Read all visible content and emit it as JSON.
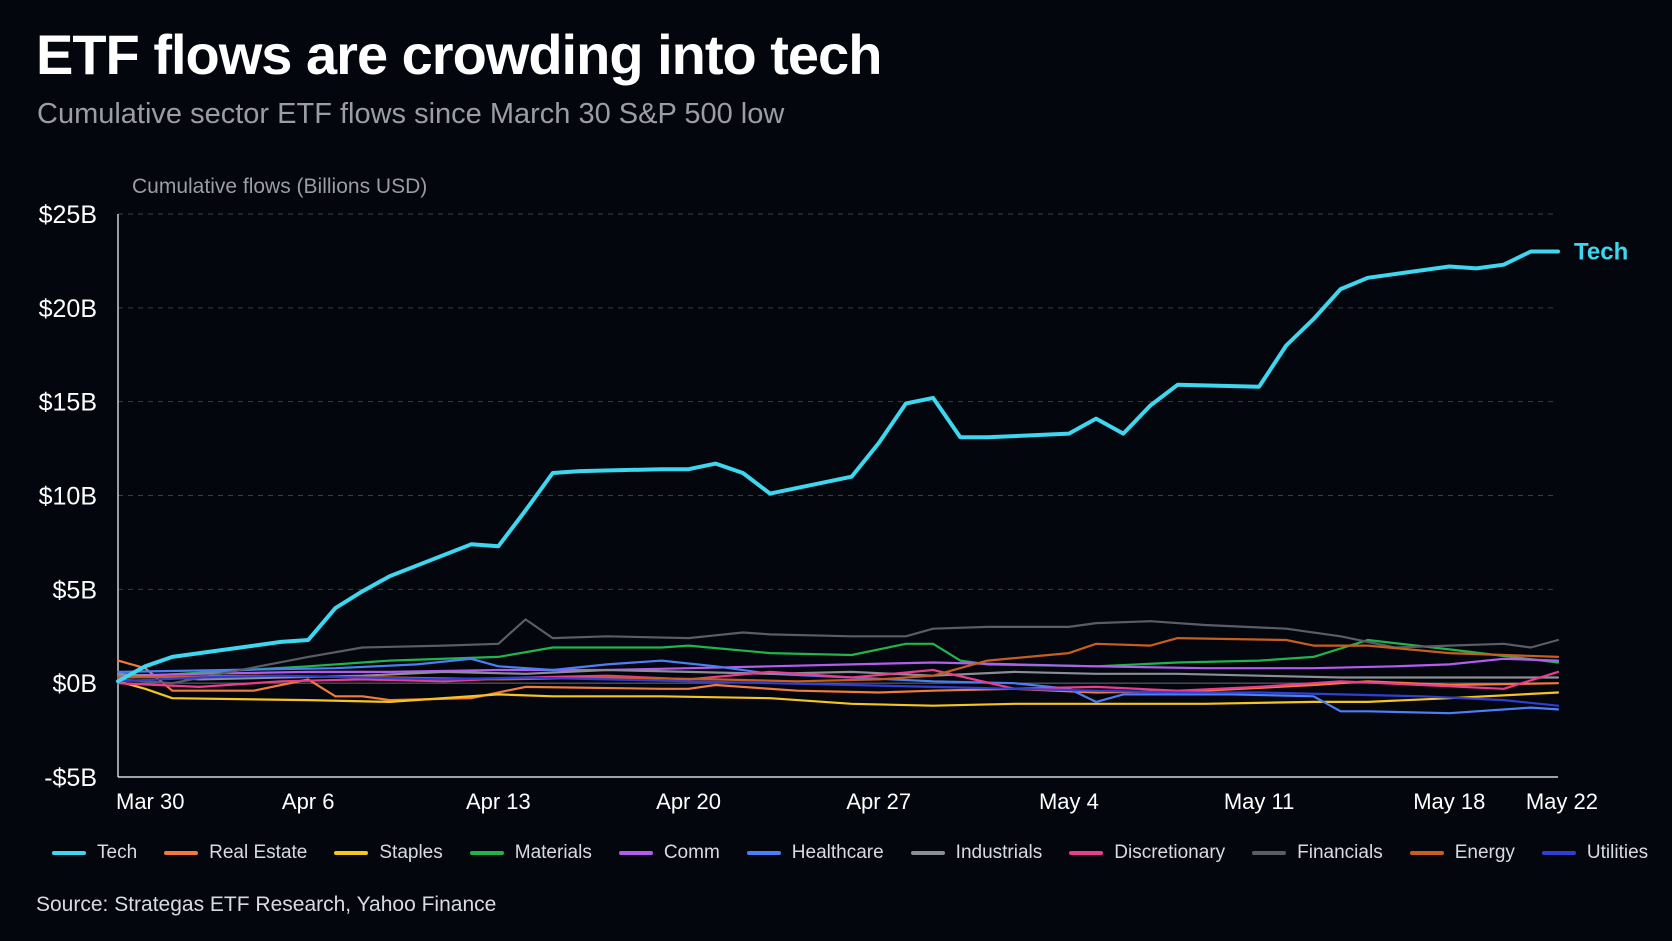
{
  "title": "ETF flows are crowding into tech",
  "subtitle": "Cumulative sector ETF flows since March 30 S&P 500 low",
  "source": "Source: Strategas ETF Research, Yahoo Finance",
  "chart_data": {
    "type": "line",
    "ylabel": "Cumulative flows (Billions USD)",
    "xlabel": "",
    "ylim": [
      -5,
      25
    ],
    "yticks": [
      25,
      20,
      15,
      10,
      5,
      0,
      -5
    ],
    "ytick_labels": [
      "$25B",
      "$20B",
      "$15B",
      "$10B",
      "$5B",
      "$0B",
      "-$5B"
    ],
    "xlim": [
      0,
      53
    ],
    "xticks": [
      0,
      7,
      14,
      21,
      28,
      35,
      42,
      49,
      53
    ],
    "xtick_labels": [
      "Mar 30",
      "Apr 6",
      "Apr 13",
      "Apr 20",
      "Apr 27",
      "May 4",
      "May 11",
      "May 18",
      "May 22"
    ],
    "grid": "horizontal dashed",
    "legend": "bottom",
    "annotations": [
      {
        "text": "Tech",
        "series": "Tech",
        "position": "line end"
      }
    ],
    "series": [
      {
        "name": "Tech",
        "color": "#3dd8f0",
        "x": [
          0,
          1,
          2,
          3,
          6,
          7,
          8,
          9,
          10,
          13,
          14,
          15,
          16,
          17,
          20,
          21,
          22,
          23,
          24,
          27,
          28,
          29,
          30,
          31,
          32,
          35,
          36,
          37,
          38,
          39,
          42,
          43,
          44,
          45,
          46,
          49,
          50,
          51,
          52,
          53
        ],
        "values": [
          0.1,
          0.9,
          1.4,
          1.6,
          2.2,
          2.3,
          4.0,
          4.9,
          5.7,
          7.4,
          7.3,
          9.2,
          11.2,
          11.3,
          11.4,
          11.4,
          11.7,
          11.2,
          10.1,
          11.0,
          12.8,
          14.9,
          15.2,
          13.1,
          13.1,
          13.3,
          14.1,
          13.3,
          14.8,
          15.9,
          15.8,
          18.0,
          19.4,
          21.0,
          21.6,
          22.2,
          22.1,
          22.3,
          23.0,
          23.0
        ]
      },
      {
        "name": "Real Estate",
        "color": "#f07b3a",
        "x": [
          0,
          1,
          2,
          5,
          7,
          8,
          9,
          10,
          13,
          14,
          15,
          20,
          21,
          22,
          25,
          28,
          30,
          33,
          36,
          40,
          44,
          46,
          49,
          53
        ],
        "values": [
          1.2,
          0.8,
          -0.4,
          -0.4,
          0.2,
          -0.7,
          -0.7,
          -0.9,
          -0.8,
          -0.5,
          -0.2,
          -0.3,
          -0.3,
          -0.1,
          -0.4,
          -0.5,
          -0.4,
          -0.3,
          -0.5,
          -0.4,
          -0.1,
          0.1,
          -0.1,
          0.0
        ]
      },
      {
        "name": "Staples",
        "color": "#f5c41e",
        "x": [
          0,
          1,
          2,
          7,
          10,
          14,
          16,
          20,
          24,
          27,
          30,
          33,
          36,
          40,
          44,
          46,
          49,
          53
        ],
        "values": [
          0.1,
          -0.3,
          -0.8,
          -0.9,
          -1.0,
          -0.6,
          -0.7,
          -0.7,
          -0.8,
          -1.1,
          -1.2,
          -1.1,
          -1.1,
          -1.1,
          -1.0,
          -1.0,
          -0.8,
          -0.5
        ]
      },
      {
        "name": "Materials",
        "color": "#21b44c",
        "x": [
          0,
          7,
          10,
          14,
          16,
          20,
          21,
          24,
          27,
          29,
          30,
          31,
          32,
          36,
          39,
          42,
          44,
          46,
          49,
          53
        ],
        "values": [
          0.3,
          0.9,
          1.2,
          1.4,
          1.9,
          1.9,
          2.0,
          1.6,
          1.5,
          2.1,
          2.1,
          1.2,
          1.0,
          0.9,
          1.1,
          1.2,
          1.4,
          2.3,
          1.8,
          1.1
        ]
      },
      {
        "name": "Comm",
        "color": "#b35cf0",
        "x": [
          0,
          3,
          7,
          10,
          14,
          18,
          21,
          24,
          27,
          30,
          33,
          36,
          40,
          44,
          47,
          49,
          51,
          53
        ],
        "values": [
          0.4,
          0.5,
          0.6,
          0.6,
          0.7,
          0.7,
          0.8,
          0.9,
          1.0,
          1.1,
          1.0,
          0.9,
          0.8,
          0.8,
          0.9,
          1.0,
          1.3,
          1.2
        ]
      },
      {
        "name": "Healthcare",
        "color": "#4a7ff5",
        "x": [
          0,
          4,
          8,
          11,
          13,
          14,
          16,
          18,
          20,
          22,
          24,
          27,
          30,
          33,
          35,
          36,
          37,
          39,
          41,
          44,
          45,
          46,
          49,
          52,
          53
        ],
        "values": [
          0.6,
          0.7,
          0.8,
          1.0,
          1.3,
          0.9,
          0.7,
          1.0,
          1.2,
          0.9,
          0.5,
          0.3,
          0.1,
          0.0,
          -0.3,
          -1.0,
          -0.6,
          -0.6,
          -0.6,
          -0.7,
          -1.5,
          -1.5,
          -1.6,
          -1.3,
          -1.4
        ]
      },
      {
        "name": "Industrials",
        "color": "#8c8e96",
        "x": [
          0,
          3,
          6,
          9,
          12,
          15,
          18,
          21,
          24,
          27,
          30,
          33,
          36,
          39,
          42,
          45,
          48,
          51,
          53
        ],
        "values": [
          0.5,
          0.2,
          0.3,
          0.4,
          0.6,
          0.5,
          0.7,
          0.6,
          0.5,
          0.6,
          0.4,
          0.6,
          0.5,
          0.5,
          0.4,
          0.3,
          0.3,
          0.3,
          0.3
        ]
      },
      {
        "name": "Discretionary",
        "color": "#ea3d8f",
        "x": [
          0,
          3,
          6,
          9,
          12,
          15,
          18,
          21,
          24,
          27,
          30,
          33,
          36,
          39,
          42,
          45,
          48,
          51,
          53
        ],
        "values": [
          0.0,
          -0.2,
          0.1,
          0.2,
          0.1,
          0.3,
          0.4,
          0.2,
          0.6,
          0.3,
          0.7,
          -0.3,
          -0.2,
          -0.4,
          -0.2,
          0.1,
          -0.1,
          -0.3,
          0.6
        ]
      },
      {
        "name": "Financials",
        "color": "#5b5d66",
        "x": [
          0,
          2,
          7,
          9,
          12,
          14,
          15,
          16,
          18,
          21,
          23,
          24,
          27,
          29,
          30,
          32,
          35,
          36,
          38,
          40,
          43,
          45,
          47,
          49,
          51,
          52,
          53
        ],
        "values": [
          0.2,
          0.0,
          1.4,
          1.9,
          2.0,
          2.1,
          3.4,
          2.4,
          2.5,
          2.4,
          2.7,
          2.6,
          2.5,
          2.5,
          2.9,
          3.0,
          3.0,
          3.2,
          3.3,
          3.1,
          2.9,
          2.5,
          1.9,
          2.0,
          2.1,
          1.9,
          2.3
        ]
      },
      {
        "name": "Energy",
        "color": "#c85e1e",
        "x": [
          0,
          5,
          10,
          14,
          18,
          22,
          25,
          28,
          30,
          32,
          35,
          36,
          38,
          39,
          43,
          44,
          46,
          49,
          53
        ],
        "values": [
          0.3,
          0.4,
          0.3,
          0.2,
          0.3,
          0.2,
          0.1,
          0.2,
          0.4,
          1.2,
          1.6,
          2.1,
          2.0,
          2.4,
          2.3,
          2.0,
          2.0,
          1.6,
          1.4
        ]
      },
      {
        "name": "Utilities",
        "color": "#2f3fd6",
        "x": [
          0,
          3,
          6,
          9,
          12,
          15,
          18,
          21,
          24,
          27,
          30,
          33,
          36,
          39,
          42,
          45,
          48,
          51,
          53
        ],
        "values": [
          0.1,
          0.3,
          0.4,
          0.3,
          0.2,
          0.3,
          0.2,
          0.1,
          0.0,
          -0.1,
          -0.2,
          -0.3,
          -0.4,
          -0.5,
          -0.5,
          -0.6,
          -0.7,
          -0.9,
          -1.2
        ]
      }
    ]
  }
}
